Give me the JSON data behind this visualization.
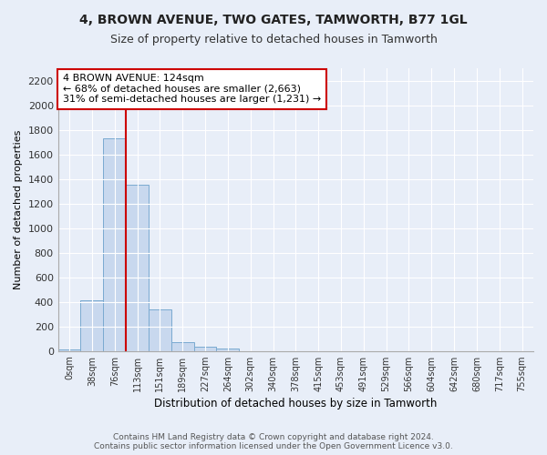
{
  "title": "4, BROWN AVENUE, TWO GATES, TAMWORTH, B77 1GL",
  "subtitle": "Size of property relative to detached houses in Tamworth",
  "xlabel": "Distribution of detached houses by size in Tamworth",
  "ylabel": "Number of detached properties",
  "bar_labels": [
    "0sqm",
    "38sqm",
    "76sqm",
    "113sqm",
    "151sqm",
    "189sqm",
    "227sqm",
    "264sqm",
    "302sqm",
    "340sqm",
    "378sqm",
    "415sqm",
    "453sqm",
    "491sqm",
    "529sqm",
    "566sqm",
    "604sqm",
    "642sqm",
    "680sqm",
    "717sqm",
    "755sqm"
  ],
  "bar_values": [
    15,
    410,
    1730,
    1350,
    340,
    75,
    32,
    18,
    0,
    0,
    0,
    0,
    0,
    0,
    0,
    0,
    0,
    0,
    0,
    0,
    0
  ],
  "bar_color": "#c8d8ee",
  "bar_edge_color": "#7aaad0",
  "ylim": [
    0,
    2300
  ],
  "yticks": [
    0,
    200,
    400,
    600,
    800,
    1000,
    1200,
    1400,
    1600,
    1800,
    2000,
    2200
  ],
  "property_line_x": 3.0,
  "annotation_line1": "4 BROWN AVENUE: 124sqm",
  "annotation_line2": "← 68% of detached houses are smaller (2,663)",
  "annotation_line3": "31% of semi-detached houses are larger (1,231) →",
  "annotation_box_color": "#ffffff",
  "annotation_border_color": "#cc0000",
  "footer_text": "Contains HM Land Registry data © Crown copyright and database right 2024.\nContains public sector information licensed under the Open Government Licence v3.0.",
  "bg_color": "#e8eef8",
  "vline_color": "#cc0000"
}
